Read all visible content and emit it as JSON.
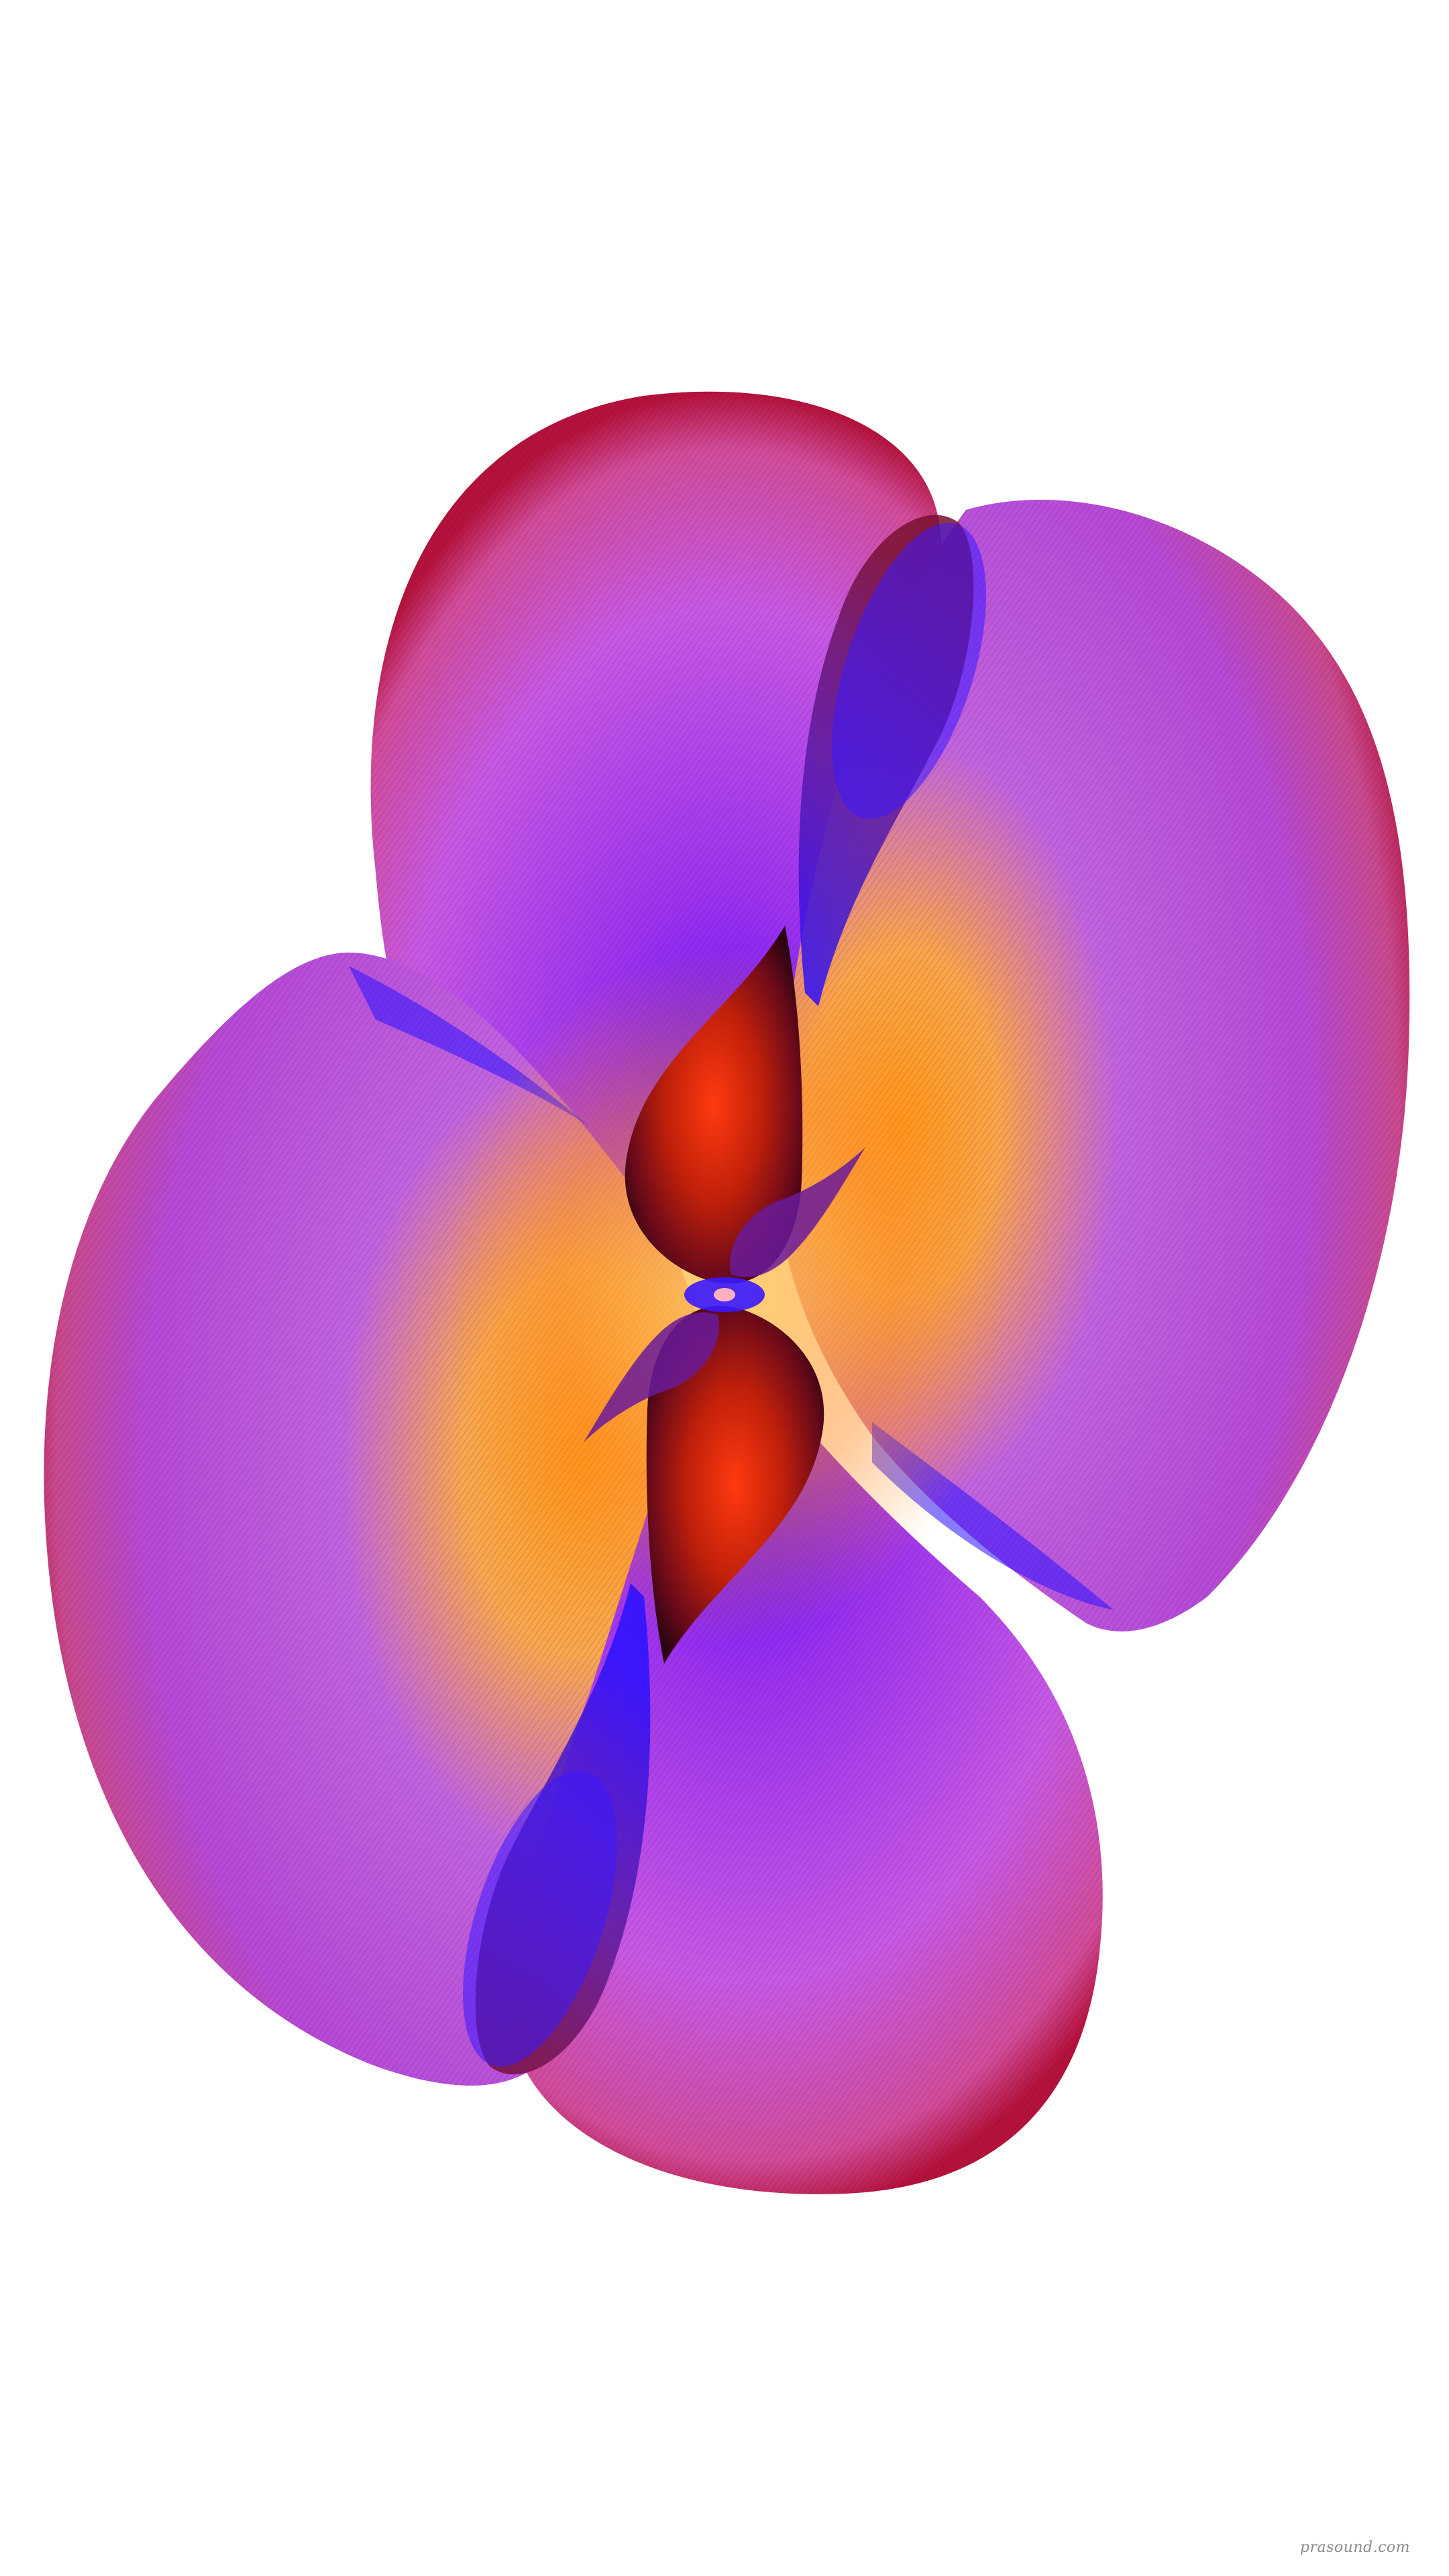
{
  "artwork": {
    "subject": "abstract-flower",
    "background": "#ffffff",
    "palette": {
      "edge_red": "#b3123a",
      "magenta": "#c23bd6",
      "violet": "#8a2be2",
      "deep_blue": "#2a10ff",
      "orange": "#ff9a1a",
      "gold": "#ffc24a",
      "core_red": "#c0200a",
      "core_dark": "#3a0610"
    }
  },
  "watermark": {
    "text": "prasound.com"
  }
}
